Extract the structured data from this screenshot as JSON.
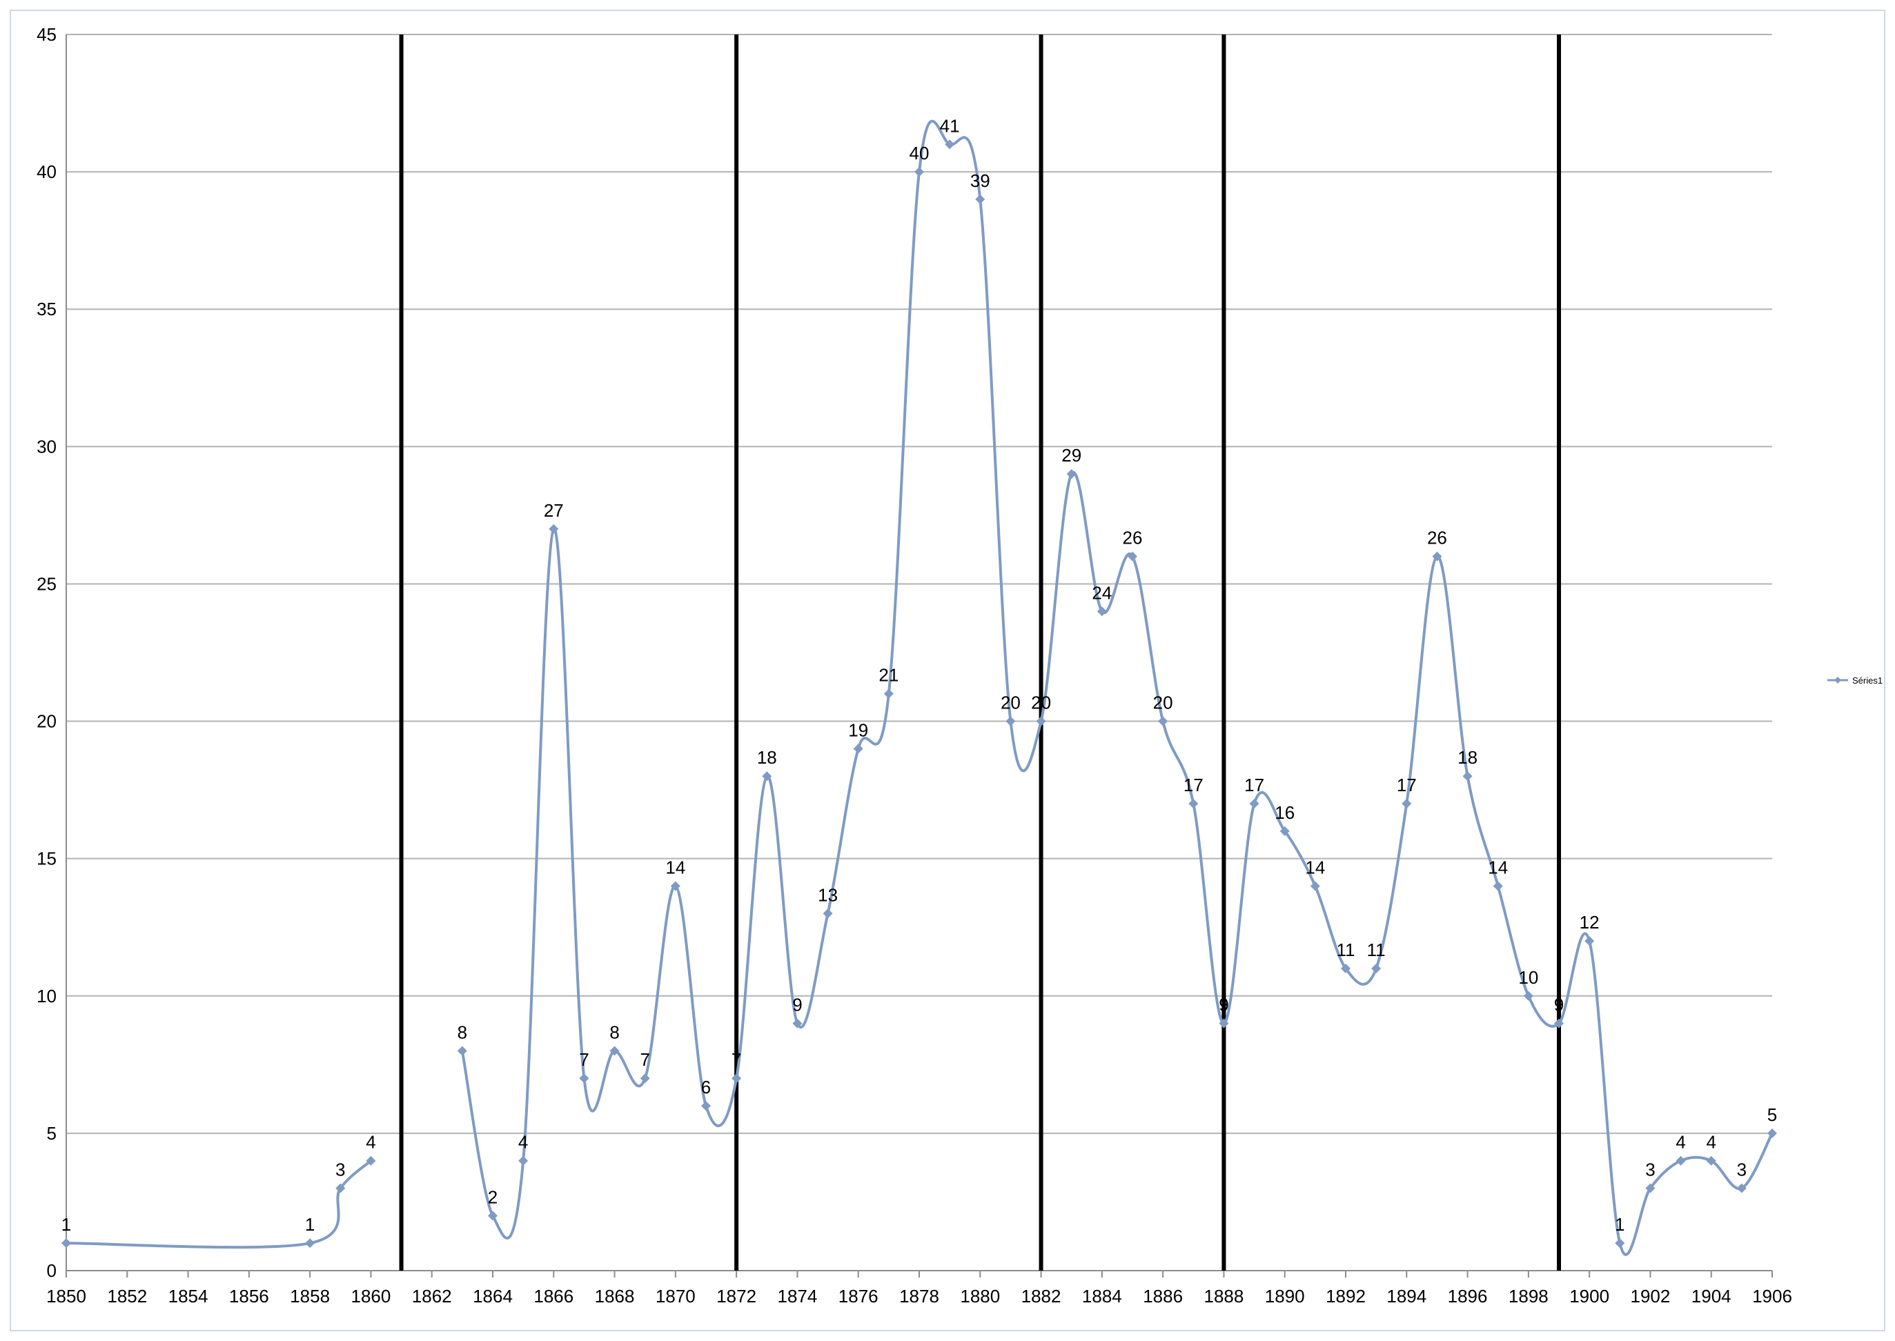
{
  "chart_data": {
    "type": "line",
    "smooth": true,
    "ylim": [
      0,
      45
    ],
    "ytick_step": 5,
    "xlim": [
      1850,
      1906
    ],
    "xtick_step": 2,
    "grid": "horizontal",
    "legend_placement": "right",
    "series": [
      {
        "name": "Séries1",
        "color": "#7f9bc4",
        "segments": [
          {
            "x": [
              1850,
              1858,
              1859,
              1860
            ],
            "y": [
              1,
              1,
              3,
              4
            ]
          },
          {
            "x": [
              1863,
              1864,
              1865,
              1866,
              1867,
              1868,
              1869,
              1870,
              1871,
              1872,
              1873,
              1874,
              1875,
              1876,
              1877,
              1878,
              1879,
              1880,
              1881,
              1882,
              1883,
              1884,
              1885,
              1886,
              1887,
              1888,
              1889,
              1890,
              1891,
              1892,
              1893,
              1894,
              1895,
              1896,
              1897,
              1898,
              1899,
              1900,
              1901,
              1902,
              1903,
              1904,
              1905,
              1906
            ],
            "y": [
              8,
              2,
              4,
              27,
              7,
              8,
              7,
              14,
              6,
              7,
              18,
              9,
              13,
              19,
              21,
              40,
              41,
              39,
              20,
              20,
              29,
              24,
              26,
              20,
              17,
              9,
              17,
              16,
              14,
              11,
              11,
              17,
              26,
              18,
              14,
              10,
              9,
              12,
              1,
              3,
              4,
              4,
              3,
              5
            ]
          }
        ]
      }
    ],
    "vertical_markers": [
      1861,
      1872,
      1882,
      1888,
      1899
    ],
    "vertical_marker_color": "#000000"
  }
}
